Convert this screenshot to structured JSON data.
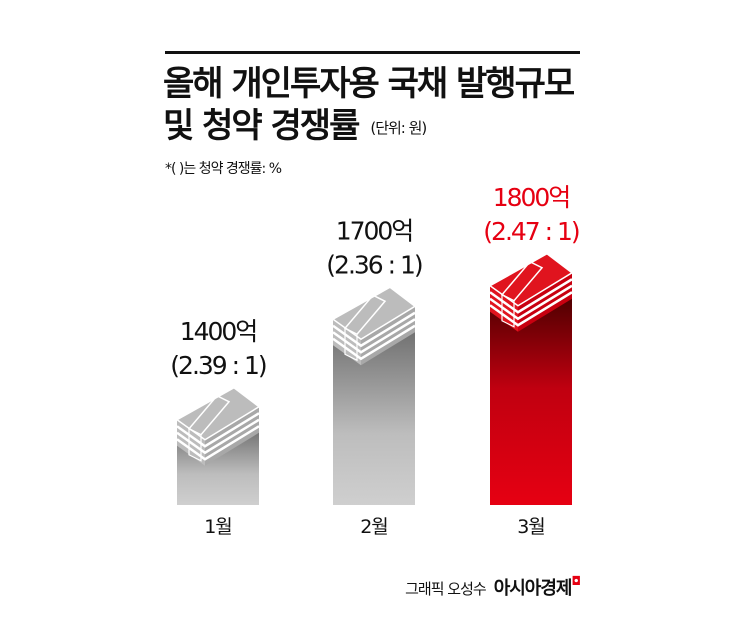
{
  "title_line1": "올해 개인투자용 국채 발행규모",
  "title_line2": "및 청약 경쟁률",
  "unit": "(단위: 원)",
  "note": "*( )는 청약 경쟁률: %",
  "credit": "그래픽 오성수",
  "brand": "아시아경제",
  "brand_mark": "ㅁ",
  "chart_data": {
    "type": "bar",
    "title": "올해 개인투자용 국채 발행규모 및 청약 경쟁률",
    "xlabel": "",
    "ylabel": "",
    "categories": [
      "1월",
      "2월",
      "3월"
    ],
    "values": [
      1400,
      1700,
      1800
    ],
    "value_labels": [
      "1400억",
      "1700억",
      "1800억"
    ],
    "ratio_labels": [
      "(2.39 : 1)",
      "(2.36 : 1)",
      "(2.47 : 1)"
    ],
    "ratios": [
      2.39,
      2.36,
      2.47
    ],
    "highlight_index": 2,
    "ylim": [
      1050,
      1850
    ],
    "colors": {
      "normal": "#b4b4b4",
      "highlight": "#e60012",
      "highlight_text": "#e60012"
    }
  }
}
